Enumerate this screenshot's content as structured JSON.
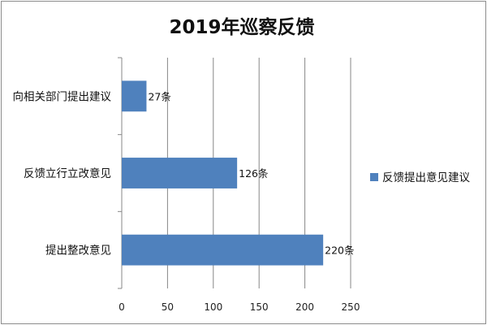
{
  "chart_data": {
    "type": "bar",
    "orientation": "horizontal",
    "title": "2019年巡察反馈",
    "categories": [
      "向相关部门提出建议",
      "反馈立行立改意见",
      "提出整改意见"
    ],
    "series": [
      {
        "name": "反馈提出意见建议",
        "values": [
          27,
          126,
          220
        ],
        "data_labels": [
          "27条",
          "126条",
          "220条"
        ]
      }
    ],
    "xlim": [
      0,
      250
    ],
    "xticks": [
      0,
      50,
      100,
      150,
      200,
      250
    ],
    "grid": "vertical",
    "legend_position": "right",
    "bar_color": "#4f81bd"
  }
}
